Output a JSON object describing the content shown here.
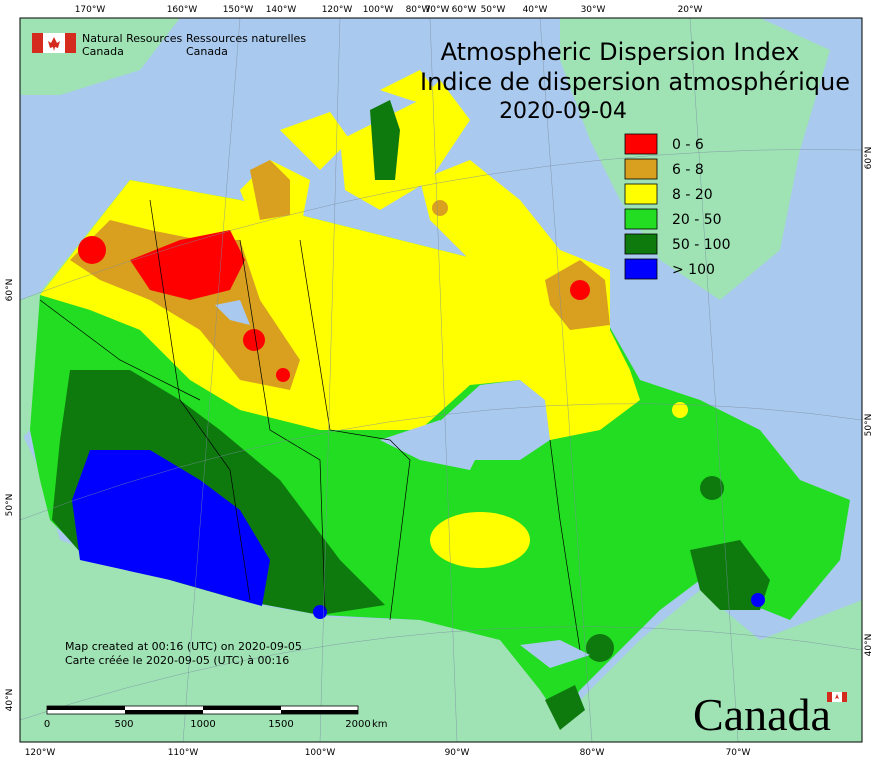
{
  "agency": {
    "en_line1": "Natural Resources",
    "en_line2": "Canada",
    "fr_line1": "Ressources naturelles",
    "fr_line2": "Canada"
  },
  "title": {
    "en": "Atmospheric Dispersion Index",
    "fr": "Indice de dispersion atmosphérique",
    "date": "2020-09-04"
  },
  "legend": [
    {
      "label": "0 - 6",
      "color": "#ff0000"
    },
    {
      "label": "6 - 8",
      "color": "#d9a020"
    },
    {
      "label": "8 - 20",
      "color": "#ffff00"
    },
    {
      "label": "20 - 50",
      "color": "#22dd22"
    },
    {
      "label": "50 - 100",
      "color": "#0e7a0e"
    },
    {
      "label": "> 100",
      "color": "#0000ff"
    }
  ],
  "graticule": {
    "top": [
      "170°W",
      "160°W",
      "150°W",
      "140°W",
      "120°W",
      "100°W",
      "80°W",
      "70°W",
      "60°W",
      "50°W",
      "40°W",
      "30°W",
      "20°W"
    ],
    "bottom": [
      "120°W",
      "110°W",
      "100°W",
      "90°W",
      "80°W",
      "70°W"
    ],
    "left": [
      "60°N",
      "50°N",
      "40°N"
    ],
    "right": [
      "60°N",
      "50°N",
      "40°N"
    ]
  },
  "notes": [
    "Map created at 00:16 (UTC) on 2020-09-05",
    "Carte créée le 2020-09-05 (UTC) à 00:16"
  ],
  "scale": {
    "ticks": [
      "0",
      "500",
      "1000",
      "1500",
      "2000"
    ],
    "unit": "km"
  },
  "wordmark": "Canada"
}
